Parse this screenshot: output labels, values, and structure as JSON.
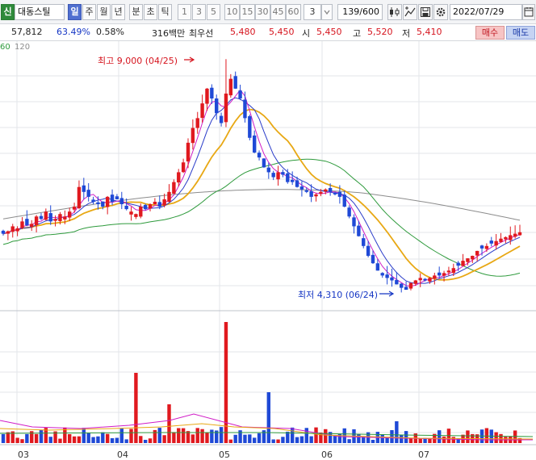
{
  "toolbar": {
    "stock_tag": "신",
    "stock_name": "대동스틸",
    "periods": [
      "일",
      "주",
      "월",
      "년",
      "분",
      "초",
      "틱"
    ],
    "active_period": "일",
    "n_buttons": [
      "1",
      "3",
      "5",
      "10",
      "15",
      "30",
      "45",
      "60"
    ],
    "custom_n": "3",
    "count": "139/600",
    "date": "2022/07/29",
    "icons": [
      "candle-type-icon",
      "crosshair-icon",
      "save-icon",
      "settings-icon",
      "calendar-icon"
    ]
  },
  "quote": {
    "price": "57,812",
    "pct1": "63.49%",
    "pct2": "0.58%",
    "volume_label": "316백만",
    "best_sell_label": "최우선",
    "best_sell_val": "5,480",
    "best_buy_val": "5,450",
    "open_label": "시",
    "open_val": "5,450",
    "high_label": "고",
    "high_val": "5,520",
    "low_label": "저",
    "low_val": "5,410",
    "buy_button": "매수",
    "sell_button": "매도"
  },
  "chart": {
    "ma_legend": [
      "60",
      "120"
    ],
    "high_annotation": "최고 9,000 (04/25)",
    "low_annotation": "최저 4,310 (06/24)",
    "x_labels": [
      "03",
      "04",
      "05",
      "06",
      "07"
    ],
    "colors": {
      "up": "#e0191f",
      "down": "#1f49d6",
      "ma5": "#d01cc7",
      "ma10": "#2a3cc9",
      "ma20": "#e8a814",
      "ma60": "#2e9a3c",
      "ma120": "#8c8c8c",
      "grid": "#e3e6ea",
      "pane_sep": "#bfc4cb",
      "high_arrow": "#d6141e",
      "low_arrow": "#1536c4"
    }
  },
  "chart_data": {
    "type": "candlestick",
    "title": "대동스틸",
    "x_period_labels": [
      "03",
      "04",
      "05",
      "06",
      "07"
    ],
    "high_marker": {
      "value": 9000,
      "date": "04/25"
    },
    "low_marker": {
      "value": 4310,
      "date": "06/24"
    },
    "moving_averages": [
      "5",
      "10",
      "20",
      "60",
      "120"
    ],
    "note_series": "approximate daily closes",
    "approx_closes": [
      5600,
      5800,
      5650,
      6100,
      5900,
      5800,
      6000,
      6500,
      6400,
      6800,
      7000,
      6700,
      6600,
      6300,
      6900,
      7400,
      7900,
      8200,
      8400,
      8100,
      7700,
      7100,
      6900,
      6600,
      6200,
      5800,
      5300,
      4900,
      4600,
      4310,
      4500,
      4700,
      4600,
      4800,
      5100,
      5300,
      5450,
      5500,
      5450
    ]
  }
}
